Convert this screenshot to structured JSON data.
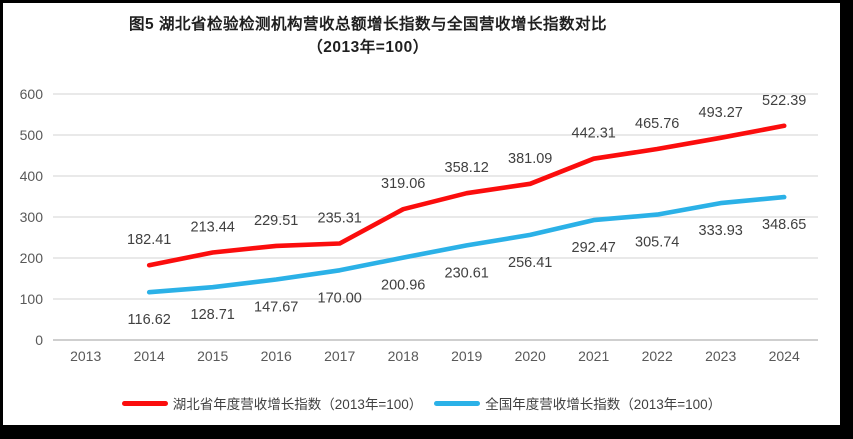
{
  "figure": {
    "title_line1": "图5 湖北省检验检测机构营收总额增长指数与全国营收增长指数对比",
    "title_line2": "（2013年=100）"
  },
  "colors": {
    "hubei_line": "#fb0d0d",
    "national_line": "#2bb1e7",
    "gridline": "#dcdcdc",
    "axis_line": "#bfbfbf",
    "tick_label": "#595959",
    "data_label": "#404040"
  },
  "chart_data": {
    "type": "line",
    "title": "图5 湖北省检验检测机构营收总额增长指数与全国营收增长指数对比（2013年=100）",
    "categories": [
      "2013",
      "2014",
      "2015",
      "2016",
      "2017",
      "2018",
      "2019",
      "2020",
      "2021",
      "2022",
      "2023",
      "2024"
    ],
    "series": [
      {
        "name": "湖北省年度营收增长指数（2013年=100）",
        "color": "#fb0d0d",
        "label_position": "above",
        "values": [
          null,
          "182.41",
          "213.44",
          "229.51",
          "235.31",
          "319.06",
          "358.12",
          "381.09",
          "442.31",
          "465.76",
          "493.27",
          "522.39"
        ]
      },
      {
        "name": "全国年度营收增长指数（2013年=100）",
        "color": "#2bb1e7",
        "label_position": "below",
        "values": [
          null,
          "116.62",
          "128.71",
          "147.67",
          "170.00",
          "200.96",
          "230.61",
          "256.41",
          "292.47",
          "305.74",
          "333.93",
          "348.65"
        ]
      }
    ],
    "ylim": [
      0,
      600
    ],
    "yticks": [
      "0",
      "100",
      "200",
      "300",
      "400",
      "500",
      "600"
    ],
    "grid": true,
    "legend_position": "bottom"
  }
}
